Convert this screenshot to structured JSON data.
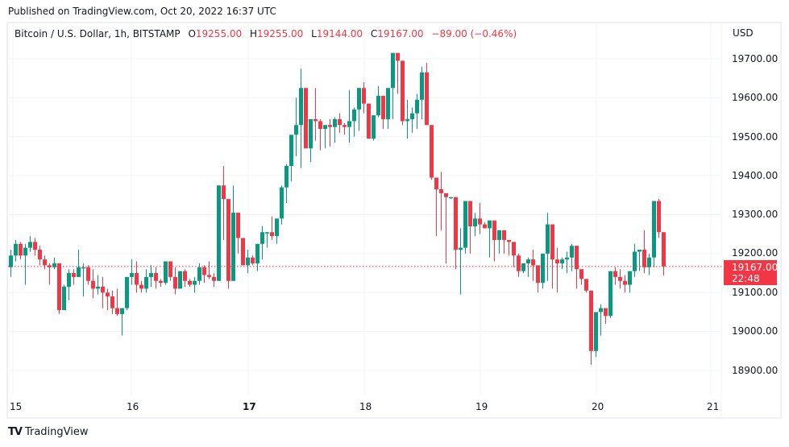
{
  "header": {
    "published": "Published on TradingView.com, Oct 20, 2022 16:37 UTC"
  },
  "legend": {
    "symbol": "Bitcoin / U.S. Dollar, 1h, BITSTAMP",
    "o_label": "O",
    "o_value": "19255.00",
    "h_label": "H",
    "h_value": "19255.00",
    "l_label": "L",
    "l_value": "19144.00",
    "c_label": "C",
    "c_value": "19167.00",
    "change": "−89.00 (−0.46%)"
  },
  "axis": {
    "currency": "USD",
    "y_ticks": [
      "19700.00",
      "19600.00",
      "19500.00",
      "19400.00",
      "19300.00",
      "19200.00",
      "19100.00",
      "19000.00",
      "18900.00"
    ],
    "x_ticks": [
      "15",
      "16",
      "17",
      "18",
      "19",
      "20",
      "21"
    ],
    "x_bold": [
      "17"
    ]
  },
  "price_tag": {
    "price": "19167.00",
    "countdown": "22:48"
  },
  "brand": {
    "logo": "TV",
    "name": "TradingView"
  },
  "colors": {
    "up": "#089981",
    "down": "#f23645",
    "grid": "#f0f3fa",
    "text": "#131722"
  },
  "chart_data": {
    "type": "candlestick",
    "title": "Bitcoin / U.S. Dollar, 1h, BITSTAMP",
    "xlabel": "",
    "ylabel": "USD",
    "ylim": [
      18870,
      19730
    ],
    "x_tick_labels": [
      "15",
      "16",
      "17",
      "18",
      "19",
      "20",
      "21"
    ],
    "last_price": 19167.0,
    "grid": true,
    "candles": [
      [
        19165,
        19210,
        19140,
        19195
      ],
      [
        19195,
        19235,
        19180,
        19225
      ],
      [
        19225,
        19230,
        19185,
        19195
      ],
      [
        19195,
        19225,
        19120,
        19215
      ],
      [
        19215,
        19245,
        19205,
        19230
      ],
      [
        19230,
        19240,
        19195,
        19210
      ],
      [
        19210,
        19220,
        19170,
        19185
      ],
      [
        19185,
        19195,
        19160,
        19170
      ],
      [
        19170,
        19175,
        19120,
        19165
      ],
      [
        19165,
        19190,
        19160,
        19175
      ],
      [
        19175,
        19170,
        19045,
        19055
      ],
      [
        19055,
        19120,
        19055,
        19115
      ],
      [
        19115,
        19160,
        19080,
        19150
      ],
      [
        19150,
        19160,
        19120,
        19140
      ],
      [
        19140,
        19210,
        19150,
        19165
      ],
      [
        19165,
        19175,
        19090,
        19165
      ],
      [
        19165,
        19170,
        19120,
        19130
      ],
      [
        19130,
        19160,
        19085,
        19110
      ],
      [
        19110,
        19145,
        19095,
        19115
      ],
      [
        19115,
        19140,
        19060,
        19100
      ],
      [
        19100,
        19110,
        19055,
        19090
      ],
      [
        19090,
        19105,
        19045,
        19060
      ],
      [
        19060,
        19110,
        19040,
        19045
      ],
      [
        19045,
        19060,
        18990,
        19060
      ],
      [
        19060,
        19130,
        19055,
        19140
      ],
      [
        19140,
        19185,
        19120,
        19150
      ],
      [
        19150,
        19180,
        19100,
        19120
      ],
      [
        19120,
        19130,
        19100,
        19110
      ],
      [
        19110,
        19160,
        19100,
        19140
      ],
      [
        19140,
        19170,
        19115,
        19150
      ],
      [
        19150,
        19165,
        19110,
        19130
      ],
      [
        19130,
        19135,
        19115,
        19125
      ],
      [
        19125,
        19180,
        19120,
        19180
      ],
      [
        19180,
        19180,
        19130,
        19140
      ],
      [
        19140,
        19165,
        19095,
        19110
      ],
      [
        19110,
        19140,
        19125,
        19155
      ],
      [
        19155,
        19160,
        19115,
        19130
      ],
      [
        19130,
        19135,
        19115,
        19120
      ],
      [
        19120,
        19140,
        19100,
        19130
      ],
      [
        19130,
        19175,
        19120,
        19165
      ],
      [
        19165,
        19170,
        19125,
        19145
      ],
      [
        19145,
        19180,
        19135,
        19140
      ],
      [
        19140,
        19150,
        19115,
        19130
      ],
      [
        19130,
        19375,
        19130,
        19375
      ],
      [
        19375,
        19425,
        19235,
        19340
      ],
      [
        19340,
        19335,
        19110,
        19130
      ],
      [
        19130,
        19375,
        19130,
        19305
      ],
      [
        19305,
        19265,
        19200,
        19240
      ],
      [
        19240,
        19240,
        19170,
        19170
      ],
      [
        19170,
        19210,
        19150,
        19190
      ],
      [
        19190,
        19195,
        19170,
        19175
      ],
      [
        19175,
        19225,
        19155,
        19225
      ],
      [
        19225,
        19270,
        19185,
        19255
      ],
      [
        19255,
        19240,
        19215,
        19255
      ],
      [
        19255,
        19295,
        19235,
        19245
      ],
      [
        19245,
        19290,
        19225,
        19290
      ],
      [
        19290,
        19375,
        19275,
        19370
      ],
      [
        19370,
        19430,
        19330,
        19425
      ],
      [
        19425,
        19500,
        19385,
        19505
      ],
      [
        19505,
        19600,
        19450,
        19530
      ],
      [
        19530,
        19675,
        19420,
        19625
      ],
      [
        19625,
        19615,
        19535,
        19470
      ],
      [
        19470,
        19530,
        19435,
        19545
      ],
      [
        19545,
        19625,
        19490,
        19540
      ],
      [
        19540,
        19545,
        19465,
        19520
      ],
      [
        19520,
        19520,
        19470,
        19530
      ],
      [
        19530,
        19545,
        19475,
        19525
      ],
      [
        19525,
        19550,
        19485,
        19545
      ],
      [
        19545,
        19560,
        19510,
        19530
      ],
      [
        19530,
        19535,
        19505,
        19525
      ],
      [
        19525,
        19620,
        19485,
        19540
      ],
      [
        19540,
        19575,
        19500,
        19570
      ],
      [
        19570,
        19620,
        19515,
        19625
      ],
      [
        19625,
        19640,
        19560,
        19585
      ],
      [
        19585,
        19580,
        19520,
        19495
      ],
      [
        19495,
        19530,
        19490,
        19555
      ],
      [
        19555,
        19630,
        19550,
        19605
      ],
      [
        19605,
        19605,
        19520,
        19545
      ],
      [
        19545,
        19585,
        19520,
        19625
      ],
      [
        19625,
        19700,
        19545,
        19715
      ],
      [
        19715,
        19700,
        19610,
        19695
      ],
      [
        19695,
        19675,
        19530,
        19540
      ],
      [
        19540,
        19595,
        19495,
        19545
      ],
      [
        19545,
        19575,
        19510,
        19560
      ],
      [
        19560,
        19610,
        19520,
        19595
      ],
      [
        19595,
        19680,
        19545,
        19665
      ],
      [
        19665,
        19690,
        19590,
        19530
      ],
      [
        19530,
        19480,
        19390,
        19395
      ],
      [
        19395,
        19380,
        19245,
        19365
      ],
      [
        19365,
        19410,
        19260,
        19355
      ],
      [
        19355,
        19340,
        19175,
        19345
      ],
      [
        19345,
        19320,
        19340,
        19345
      ],
      [
        19345,
        19300,
        19160,
        19210
      ],
      [
        19210,
        19265,
        19095,
        19215
      ],
      [
        19215,
        19330,
        19200,
        19335
      ],
      [
        19335,
        19335,
        19200,
        19270
      ],
      [
        19270,
        19305,
        19245,
        19290
      ],
      [
        19290,
        19330,
        19250,
        19275
      ],
      [
        19275,
        19280,
        19265,
        19265
      ],
      [
        19265,
        19260,
        19190,
        19285
      ],
      [
        19285,
        19265,
        19180,
        19235
      ],
      [
        19235,
        19255,
        19200,
        19260
      ],
      [
        19260,
        19240,
        19200,
        19235
      ],
      [
        19235,
        19225,
        19195,
        19230
      ],
      [
        19230,
        19215,
        19165,
        19195
      ],
      [
        19195,
        19200,
        19140,
        19155
      ],
      [
        19155,
        19170,
        19150,
        19175
      ],
      [
        19175,
        19190,
        19140,
        19185
      ],
      [
        19185,
        19210,
        19130,
        19170
      ],
      [
        19170,
        19145,
        19100,
        19125
      ],
      [
        19125,
        19190,
        19110,
        19200
      ],
      [
        19200,
        19305,
        19130,
        19275
      ],
      [
        19275,
        19275,
        19110,
        19185
      ],
      [
        19185,
        19215,
        19100,
        19175
      ],
      [
        19175,
        19190,
        19160,
        19185
      ],
      [
        19185,
        19205,
        19150,
        19190
      ],
      [
        19190,
        19225,
        19155,
        19220
      ],
      [
        19220,
        19210,
        19110,
        19160
      ],
      [
        19160,
        19160,
        19120,
        19135
      ],
      [
        19135,
        19130,
        19100,
        19105
      ],
      [
        19105,
        19095,
        18915,
        18950
      ],
      [
        18950,
        19020,
        18935,
        19050
      ],
      [
        19050,
        19070,
        18990,
        19060
      ],
      [
        19060,
        19060,
        19020,
        19040
      ],
      [
        19040,
        19155,
        19035,
        19155
      ],
      [
        19155,
        19165,
        19120,
        19140
      ],
      [
        19140,
        19160,
        19110,
        19130
      ],
      [
        19130,
        19145,
        19100,
        19120
      ],
      [
        19120,
        19150,
        19100,
        19155
      ],
      [
        19155,
        19225,
        19140,
        19205
      ],
      [
        19205,
        19210,
        19155,
        19210
      ],
      [
        19210,
        19260,
        19150,
        19165
      ],
      [
        19165,
        19200,
        19145,
        19190
      ],
      [
        19190,
        19335,
        19165,
        19335
      ],
      [
        19335,
        19340,
        19240,
        19255
      ],
      [
        19255,
        19255,
        19144,
        19167
      ]
    ]
  }
}
